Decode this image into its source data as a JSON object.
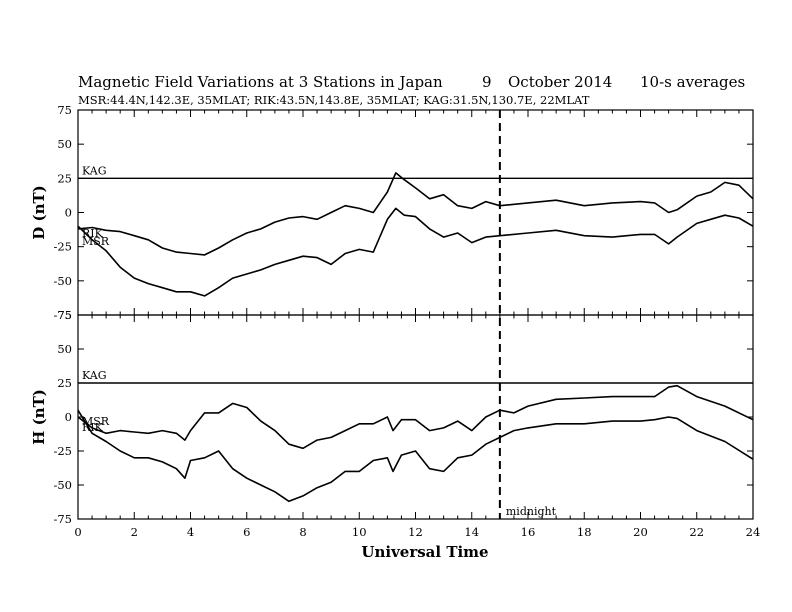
{
  "header": {
    "title": "Magnetic Field Variations at 3 Stations in Japan",
    "date_day": "9",
    "date_month_year": "October 2014",
    "averaging": "10-s averages",
    "subtitle": "MSR:44.4N,142.3E, 35MLAT;  RIK:43.5N,143.8E, 35MLAT;  KAG:31.5N,130.7E, 22MLAT"
  },
  "chart_data": [
    {
      "type": "line",
      "ylabel": "D (nT)",
      "ylim": [
        -75,
        75
      ],
      "xlim": [
        0,
        24
      ],
      "yticks": [
        -75,
        -50,
        -25,
        0,
        25,
        50,
        75
      ],
      "reference_line": {
        "label": "KAG",
        "y": 25
      },
      "series_labels": [
        "RIK",
        "MSR"
      ],
      "series": [
        {
          "name": "RIK",
          "x": [
            0,
            0.5,
            1,
            1.5,
            2,
            2.5,
            3,
            3.5,
            4,
            4.5,
            5,
            5.5,
            6,
            6.5,
            7,
            7.5,
            8,
            8.5,
            9,
            9.5,
            10,
            10.5,
            11,
            11.3,
            11.6,
            12,
            12.5,
            13,
            13.5,
            14,
            14.5,
            15,
            16,
            17,
            18,
            19,
            20,
            20.5,
            21,
            21.3,
            22,
            22.5,
            23,
            23.5,
            24
          ],
          "y": [
            -12,
            -11,
            -13,
            -14,
            -17,
            -20,
            -26,
            -29,
            -30,
            -31,
            -26,
            -20,
            -15,
            -12,
            -7,
            -4,
            -3,
            -5,
            0,
            5,
            3,
            0,
            15,
            29,
            24,
            18,
            10,
            13,
            5,
            3,
            8,
            5,
            7,
            9,
            5,
            7,
            8,
            7,
            0,
            2,
            12,
            15,
            22,
            20,
            10
          ]
        },
        {
          "name": "MSR",
          "x": [
            0,
            0.5,
            1,
            1.5,
            2,
            2.5,
            3,
            3.5,
            4,
            4.5,
            5,
            5.5,
            6,
            6.5,
            7,
            7.5,
            8,
            8.5,
            9,
            9.5,
            10,
            10.5,
            11,
            11.3,
            11.6,
            12,
            12.5,
            13,
            13.5,
            14,
            14.5,
            15,
            16,
            17,
            18,
            19,
            20,
            20.5,
            21,
            21.3,
            22,
            22.5,
            23,
            23.5,
            24
          ],
          "y": [
            -10,
            -20,
            -28,
            -40,
            -48,
            -52,
            -55,
            -58,
            -58,
            -61,
            -55,
            -48,
            -45,
            -42,
            -38,
            -35,
            -32,
            -33,
            -38,
            -30,
            -27,
            -29,
            -5,
            3,
            -2,
            -3,
            -12,
            -18,
            -15,
            -22,
            -18,
            -17,
            -15,
            -13,
            -17,
            -18,
            -16,
            -16,
            -23,
            -18,
            -8,
            -5,
            -2,
            -4,
            -10
          ]
        }
      ]
    },
    {
      "type": "line",
      "ylabel": "H (nT)",
      "ylim": [
        -75,
        75
      ],
      "xlim": [
        0,
        24
      ],
      "yticks": [
        -75,
        -50,
        -25,
        0,
        25,
        50,
        75
      ],
      "xticks": [
        0,
        2,
        4,
        6,
        8,
        10,
        12,
        14,
        16,
        18,
        20,
        22,
        24
      ],
      "xlabel": "Universal Time",
      "reference_line": {
        "label": "KAG",
        "y": 25
      },
      "series_labels": [
        "MSR",
        "RIK"
      ],
      "series": [
        {
          "name": "MSR",
          "x": [
            0,
            0.5,
            1,
            1.5,
            2,
            2.5,
            3,
            3.5,
            3.8,
            4,
            4.5,
            5,
            5.5,
            6,
            6.5,
            7,
            7.5,
            8,
            8.5,
            9,
            9.5,
            10,
            10.5,
            11,
            11.2,
            11.5,
            12,
            12.5,
            13,
            13.5,
            14,
            14.5,
            15,
            15.5,
            16,
            17,
            18,
            19,
            20,
            20.5,
            21,
            21.3,
            22,
            23,
            24
          ],
          "y": [
            0,
            -8,
            -12,
            -10,
            -11,
            -12,
            -10,
            -12,
            -17,
            -10,
            3,
            3,
            10,
            7,
            -3,
            -10,
            -20,
            -23,
            -17,
            -15,
            -10,
            -5,
            -5,
            0,
            -10,
            -2,
            -2,
            -10,
            -8,
            -3,
            -10,
            0,
            5,
            3,
            8,
            13,
            14,
            15,
            15,
            15,
            22,
            23,
            15,
            8,
            -2
          ]
        },
        {
          "name": "RIK",
          "x": [
            0,
            0.5,
            1,
            1.5,
            2,
            2.5,
            3,
            3.5,
            3.8,
            4,
            4.5,
            5,
            5.5,
            6,
            6.5,
            7,
            7.5,
            8,
            8.5,
            9,
            9.5,
            10,
            10.5,
            11,
            11.2,
            11.5,
            12,
            12.5,
            13,
            13.5,
            14,
            14.5,
            15,
            15.5,
            16,
            17,
            18,
            19,
            20,
            20.5,
            21,
            21.3,
            22,
            23,
            24
          ],
          "y": [
            5,
            -12,
            -18,
            -25,
            -30,
            -30,
            -33,
            -38,
            -45,
            -32,
            -30,
            -25,
            -38,
            -45,
            -50,
            -55,
            -62,
            -58,
            -52,
            -48,
            -40,
            -40,
            -32,
            -30,
            -40,
            -28,
            -25,
            -38,
            -40,
            -30,
            -28,
            -20,
            -15,
            -10,
            -8,
            -5,
            -5,
            -3,
            -3,
            -2,
            0,
            -1,
            -10,
            -18,
            -31
          ]
        }
      ]
    }
  ],
  "midnight_marker": {
    "x": 15,
    "label": "midnight"
  }
}
